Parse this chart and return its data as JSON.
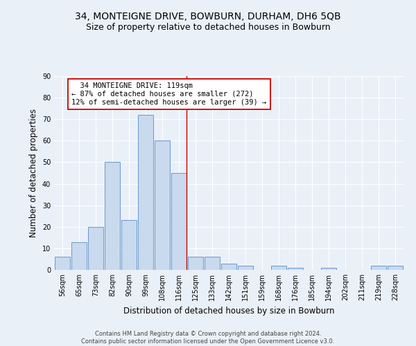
{
  "title_line1": "34, MONTEIGNE DRIVE, BOWBURN, DURHAM, DH6 5QB",
  "title_line2": "Size of property relative to detached houses in Bowburn",
  "xlabel": "Distribution of detached houses by size in Bowburn",
  "ylabel": "Number of detached properties",
  "footer_line1": "Contains HM Land Registry data © Crown copyright and database right 2024.",
  "footer_line2": "Contains public sector information licensed under the Open Government Licence v3.0.",
  "bar_labels": [
    "56sqm",
    "65sqm",
    "73sqm",
    "82sqm",
    "90sqm",
    "99sqm",
    "108sqm",
    "116sqm",
    "125sqm",
    "133sqm",
    "142sqm",
    "151sqm",
    "159sqm",
    "168sqm",
    "176sqm",
    "185sqm",
    "194sqm",
    "202sqm",
    "211sqm",
    "219sqm",
    "228sqm"
  ],
  "bar_values": [
    6,
    13,
    20,
    50,
    23,
    72,
    60,
    45,
    6,
    6,
    3,
    2,
    0,
    2,
    1,
    0,
    1,
    0,
    0,
    2,
    2
  ],
  "bar_color": "#c9d9ee",
  "bar_edge_color": "#6699cc",
  "highlight_index": 7,
  "highlight_line_color": "#cc0000",
  "annotation_line1": "  34 MONTEIGNE DRIVE: 119sqm",
  "annotation_line2": "← 87% of detached houses are smaller (272)",
  "annotation_line3": "12% of semi-detached houses are larger (39) →",
  "annotation_box_color": "#ffffff",
  "annotation_box_edge": "#cc0000",
  "background_color": "#eaf0f8",
  "ylim": [
    0,
    90
  ],
  "yticks": [
    0,
    10,
    20,
    30,
    40,
    50,
    60,
    70,
    80,
    90
  ],
  "title_fontsize": 10,
  "subtitle_fontsize": 9,
  "axis_label_fontsize": 8.5,
  "tick_fontsize": 7,
  "annotation_fontsize": 7.5,
  "footer_fontsize": 6
}
